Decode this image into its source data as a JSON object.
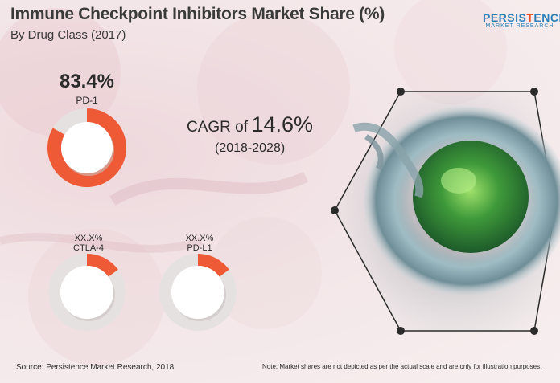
{
  "title": "Immune Checkpoint Inhibitors Market Share (%)",
  "subtitle": "By Drug Class (2017)",
  "logo": {
    "name_a": "PERSIS",
    "name_b": "T",
    "name_c": "ENCE",
    "sub": "MARKET RESEARCH"
  },
  "cagr": {
    "prefix": "CAGR of",
    "value": "14.6%",
    "period": "(2018-2028)"
  },
  "source": "Source: Persistence Market Research, 2018",
  "note": "Note: Market shares are not depicted as per the actual scale and are only for illustration purposes.",
  "colors": {
    "accent": "#ee5a35",
    "ring_bg": "#e6e1e1",
    "ring_center": "#ffffff"
  },
  "chart_data": {
    "type": "pie",
    "title": "Immune Checkpoint Inhibitors Market Share (%)",
    "subtitle": "By Drug Class (2017)",
    "categories": [
      "PD-1",
      "CTLA-4",
      "PD-L1"
    ],
    "value_labels": [
      "83.4%",
      "XX.X%",
      "XX.X%"
    ],
    "values": [
      83.4,
      15,
      15
    ],
    "legend": "none"
  }
}
